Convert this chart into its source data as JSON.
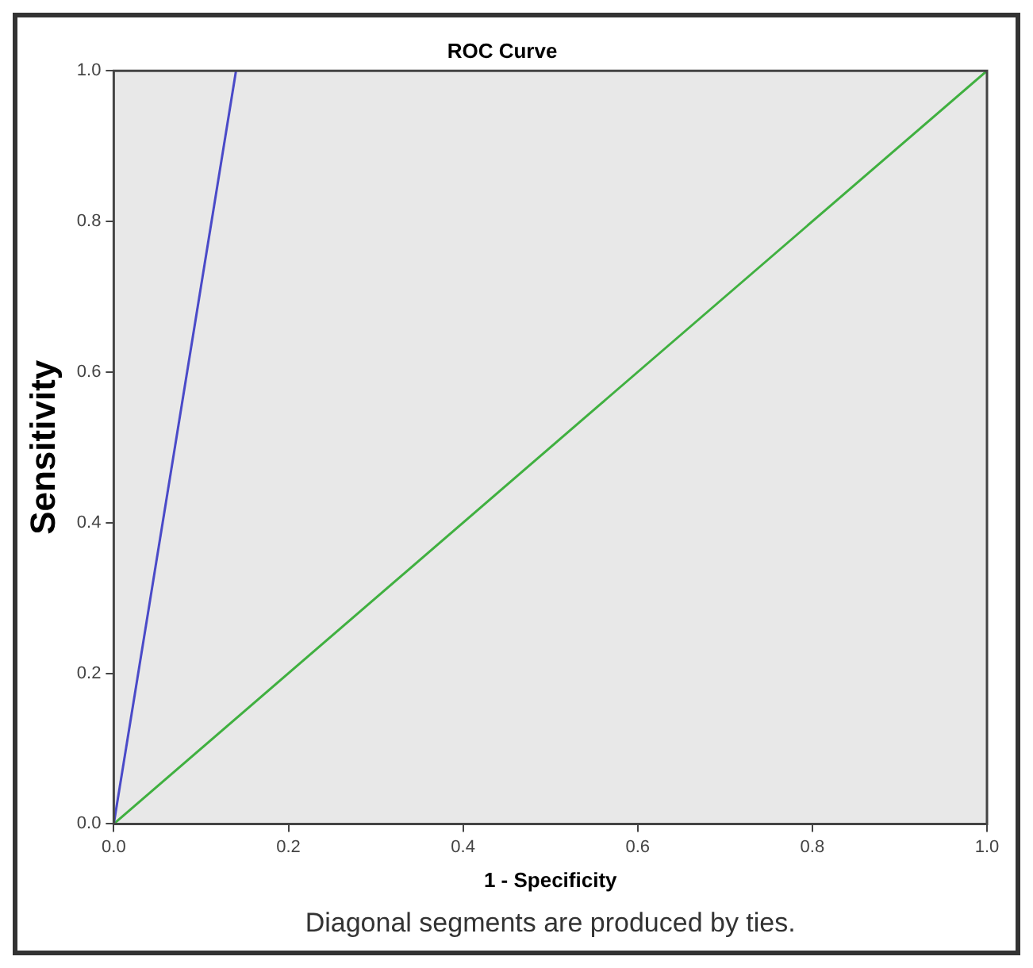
{
  "chart_data": {
    "type": "line",
    "title": "ROC Curve",
    "xlabel": "1 - Specificity",
    "ylabel": "Sensitivity",
    "annotations": [
      "Diagonal segments are produced by ties."
    ],
    "series": [
      {
        "color": "#4a4ac8",
        "x": [
          0,
          0.14
        ],
        "values": [
          0,
          1
        ]
      },
      {
        "color": "#40b040",
        "x": [
          0,
          1
        ],
        "values": [
          0,
          1
        ]
      }
    ],
    "xlim": [
      0,
      1
    ],
    "xticks": [
      {
        "value": 0,
        "label": "0.0"
      },
      {
        "value": 0.2,
        "label": "0.2"
      },
      {
        "value": 0.4,
        "label": "0.4"
      },
      {
        "value": 0.6,
        "label": "0.6"
      },
      {
        "value": 0.8,
        "label": "0.8"
      },
      {
        "value": 1,
        "label": "1.0"
      }
    ],
    "ylim": [
      0,
      1
    ],
    "yticks": [
      {
        "value": 0,
        "label": "0.0"
      },
      {
        "value": 0.2,
        "label": "0.2"
      },
      {
        "value": 0.4,
        "label": "0.4"
      },
      {
        "value": 0.6,
        "label": "0.6"
      },
      {
        "value": 0.8,
        "label": "0.8"
      },
      {
        "value": 1,
        "label": "1.0"
      }
    ],
    "grid": false,
    "legend": false,
    "marker": "none",
    "line_style": "solid"
  }
}
